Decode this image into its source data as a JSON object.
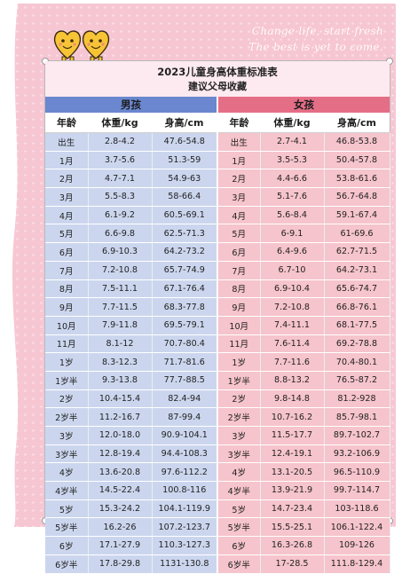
{
  "slogan": {
    "line1": "Change life, start fresh",
    "line2": "The best is yet to come."
  },
  "colors": {
    "background_pink": "#f6c7d3",
    "boys_header": "#6a87cf",
    "boys_cells": "#cbd6ee",
    "girls_header": "#e56e87",
    "girls_cells": "#f6c4cc"
  },
  "mascot_icon": "two smiling heart-shaped cartoon characters",
  "table": {
    "title": "2023儿童身高体重标准表",
    "subtitle": "建议父母收藏",
    "boys_label": "男孩",
    "girls_label": "女孩",
    "columns": [
      "年龄",
      "体重/kg",
      "身高/cm"
    ],
    "rows": [
      {
        "age": "出生",
        "bw": "2.8-4.2",
        "bh": "47.6-54.8",
        "gage": "出生",
        "gw": "2.7-4.1",
        "gh": "46.8-53.8"
      },
      {
        "age": "1月",
        "bw": "3.7-5.6",
        "bh": "51.3-59",
        "gage": "1月",
        "gw": "3.5-5.3",
        "gh": "50.4-57.8"
      },
      {
        "age": "2月",
        "bw": "4.7-7.1",
        "bh": "54.9-63",
        "gage": "2月",
        "gw": "4.4-6.6",
        "gh": "53.8-61.6"
      },
      {
        "age": "3月",
        "bw": "5.5-8.3",
        "bh": "58-66.4",
        "gage": "3月",
        "gw": "5.1-7.6",
        "gh": "56.7-64.8"
      },
      {
        "age": "4月",
        "bw": "6.1-9.2",
        "bh": "60.5-69.1",
        "gage": "4月",
        "gw": "5.6-8.4",
        "gh": "59.1-67.4"
      },
      {
        "age": "5月",
        "bw": "6.6-9.8",
        "bh": "62.5-71.3",
        "gage": "5月",
        "gw": "6-9.1",
        "gh": "61-69.6"
      },
      {
        "age": "6月",
        "bw": "6.9-10.3",
        "bh": "64.2-73.2",
        "gage": "6月",
        "gw": "6.4-9.6",
        "gh": "62.7-71.5"
      },
      {
        "age": "7月",
        "bw": "7.2-10.8",
        "bh": "65.7-74.9",
        "gage": "7月",
        "gw": "6.7-10",
        "gh": "64.2-73.1"
      },
      {
        "age": "8月",
        "bw": "7.5-11.1",
        "bh": "67.1-76.4",
        "gage": "8月",
        "gw": "6.9-10.4",
        "gh": "65.6-74.7"
      },
      {
        "age": "9月",
        "bw": "7.7-11.5",
        "bh": "68.3-77.8",
        "gage": "9月",
        "gw": "7.2-10.8",
        "gh": "66.8-76.1"
      },
      {
        "age": "10月",
        "bw": "7.9-11.8",
        "bh": "69.5-79.1",
        "gage": "10月",
        "gw": "7.4-11.1",
        "gh": "68.1-77.5"
      },
      {
        "age": "11月",
        "bw": "8.1-12",
        "bh": "70.7-80.4",
        "gage": "11月",
        "gw": "7.6-11.4",
        "gh": "69.2-78.8"
      },
      {
        "age": "1岁",
        "bw": "8.3-12.3",
        "bh": "71.7-81.6",
        "gage": "1岁",
        "gw": "7.7-11.6",
        "gh": "70.4-80.1"
      },
      {
        "age": "1岁半",
        "bw": "9.3-13.8",
        "bh": "77.7-88.5",
        "gage": "1岁半",
        "gw": "8.8-13.2",
        "gh": "76.5-87.2"
      },
      {
        "age": "2岁",
        "bw": "10.4-15.4",
        "bh": "82.4-94",
        "gage": "2岁",
        "gw": "9.8-14.8",
        "gh": "81.2-928"
      },
      {
        "age": "2岁半",
        "bw": "11.2-16.7",
        "bh": "87-99.4",
        "gage": "2岁半",
        "gw": "10.7-16.2",
        "gh": "85.7-98.1"
      },
      {
        "age": "3岁",
        "bw": "12.0-18.0",
        "bh": "90.9-104.1",
        "gage": "3岁",
        "gw": "11.5-17.7",
        "gh": "89.7-102.7"
      },
      {
        "age": "3岁半",
        "bw": "12.8-19.4",
        "bh": "94.4-108.3",
        "gage": "3岁半",
        "gw": "12.4-19.1",
        "gh": "93.2-106.9"
      },
      {
        "age": "4岁",
        "bw": "13.6-20.8",
        "bh": "97.6-112.2",
        "gage": "4岁",
        "gw": "13.1-20.5",
        "gh": "96.5-110.9"
      },
      {
        "age": "4岁半",
        "bw": "14.5-22.4",
        "bh": "100.8-116",
        "gage": "4岁半",
        "gw": "13.9-21.9",
        "gh": "99.7-114.7"
      },
      {
        "age": "5岁",
        "bw": "15.3-24.2",
        "bh": "104.1-119.9",
        "gage": "5岁",
        "gw": "14.7-23.4",
        "gh": "103-118.6"
      },
      {
        "age": "5岁半",
        "bw": "16.2-26",
        "bh": "107.2-123.7",
        "gage": "5岁半",
        "gw": "15.5-25.1",
        "gh": "106.1-122.4"
      },
      {
        "age": "6岁",
        "bw": "17.1-27.9",
        "bh": "110.3-127.3",
        "gage": "6岁",
        "gw": "16.3-26.8",
        "gh": "109-126"
      },
      {
        "age": "6岁半",
        "bw": "17.8-29.8",
        "bh": "1131-130.8",
        "gage": "6岁半",
        "gw": "17-28.5",
        "gh": "111.8-129.4"
      }
    ]
  }
}
